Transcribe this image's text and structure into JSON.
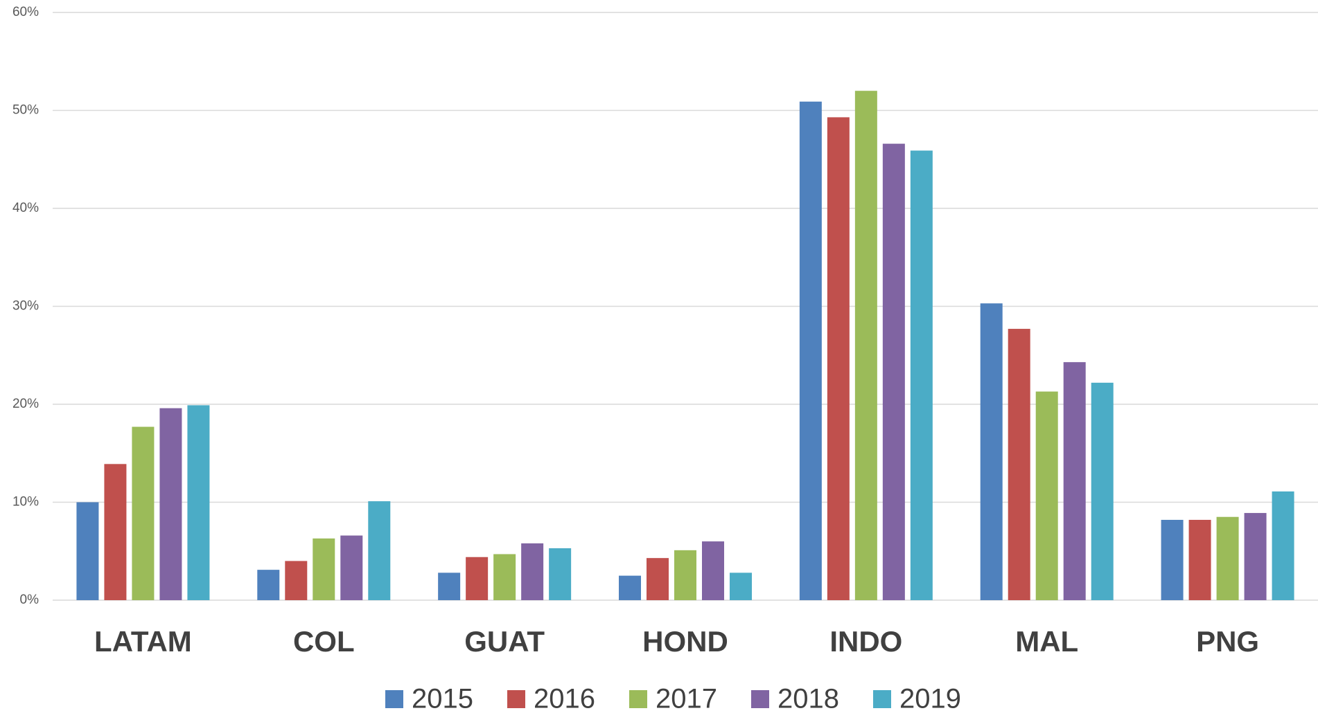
{
  "chart_data": {
    "type": "bar",
    "categories": [
      "LATAM",
      "COL",
      "GUAT",
      "HOND",
      "INDO",
      "MAL",
      "PNG"
    ],
    "series": [
      {
        "name": "2015",
        "color": "#4f81bd",
        "values": [
          10.0,
          3.1,
          2.8,
          2.5,
          50.9,
          30.3,
          8.2
        ]
      },
      {
        "name": "2016",
        "color": "#c0504d",
        "values": [
          13.9,
          4.0,
          4.4,
          4.3,
          49.3,
          27.7,
          8.2
        ]
      },
      {
        "name": "2017",
        "color": "#9bbb59",
        "values": [
          17.7,
          6.3,
          4.7,
          5.1,
          52.0,
          21.3,
          8.5
        ]
      },
      {
        "name": "2018",
        "color": "#8064a2",
        "values": [
          19.6,
          6.6,
          5.8,
          6.0,
          46.6,
          24.3,
          8.9
        ]
      },
      {
        "name": "2019",
        "color": "#4bacc6",
        "values": [
          19.9,
          10.1,
          5.3,
          2.8,
          45.9,
          22.2,
          11.1
        ]
      }
    ],
    "ylim": [
      0,
      60
    ],
    "yticks": [
      {
        "value": 0,
        "label": "0%"
      },
      {
        "value": 10,
        "label": "10%"
      },
      {
        "value": 20,
        "label": "20%"
      },
      {
        "value": 30,
        "label": "30%"
      },
      {
        "value": 40,
        "label": "40%"
      },
      {
        "value": 50,
        "label": "50%"
      },
      {
        "value": 60,
        "label": "60%"
      }
    ],
    "grid": true,
    "legend": "bottom"
  }
}
